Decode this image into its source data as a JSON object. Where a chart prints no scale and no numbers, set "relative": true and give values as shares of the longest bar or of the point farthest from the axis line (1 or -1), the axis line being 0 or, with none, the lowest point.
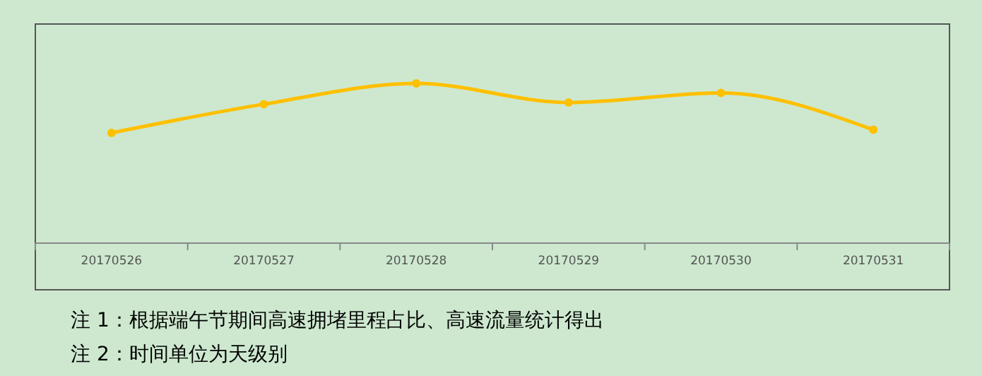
{
  "chart_data": {
    "type": "line",
    "relative": true,
    "marker": "circle",
    "categories": [
      "20170526",
      "20170527",
      "20170528",
      "20170529",
      "20170530",
      "20170531"
    ],
    "series": [
      {
        "color": "#ffc000",
        "values": [
          0.69,
          0.87,
          1,
          0.88,
          0.94,
          0.71
        ]
      }
    ],
    "annotations": [
      "注 1：根据端午节期间高速拥堵里程占比、高速流量统计得出",
      "注 2：时间单位为天级别"
    ]
  }
}
